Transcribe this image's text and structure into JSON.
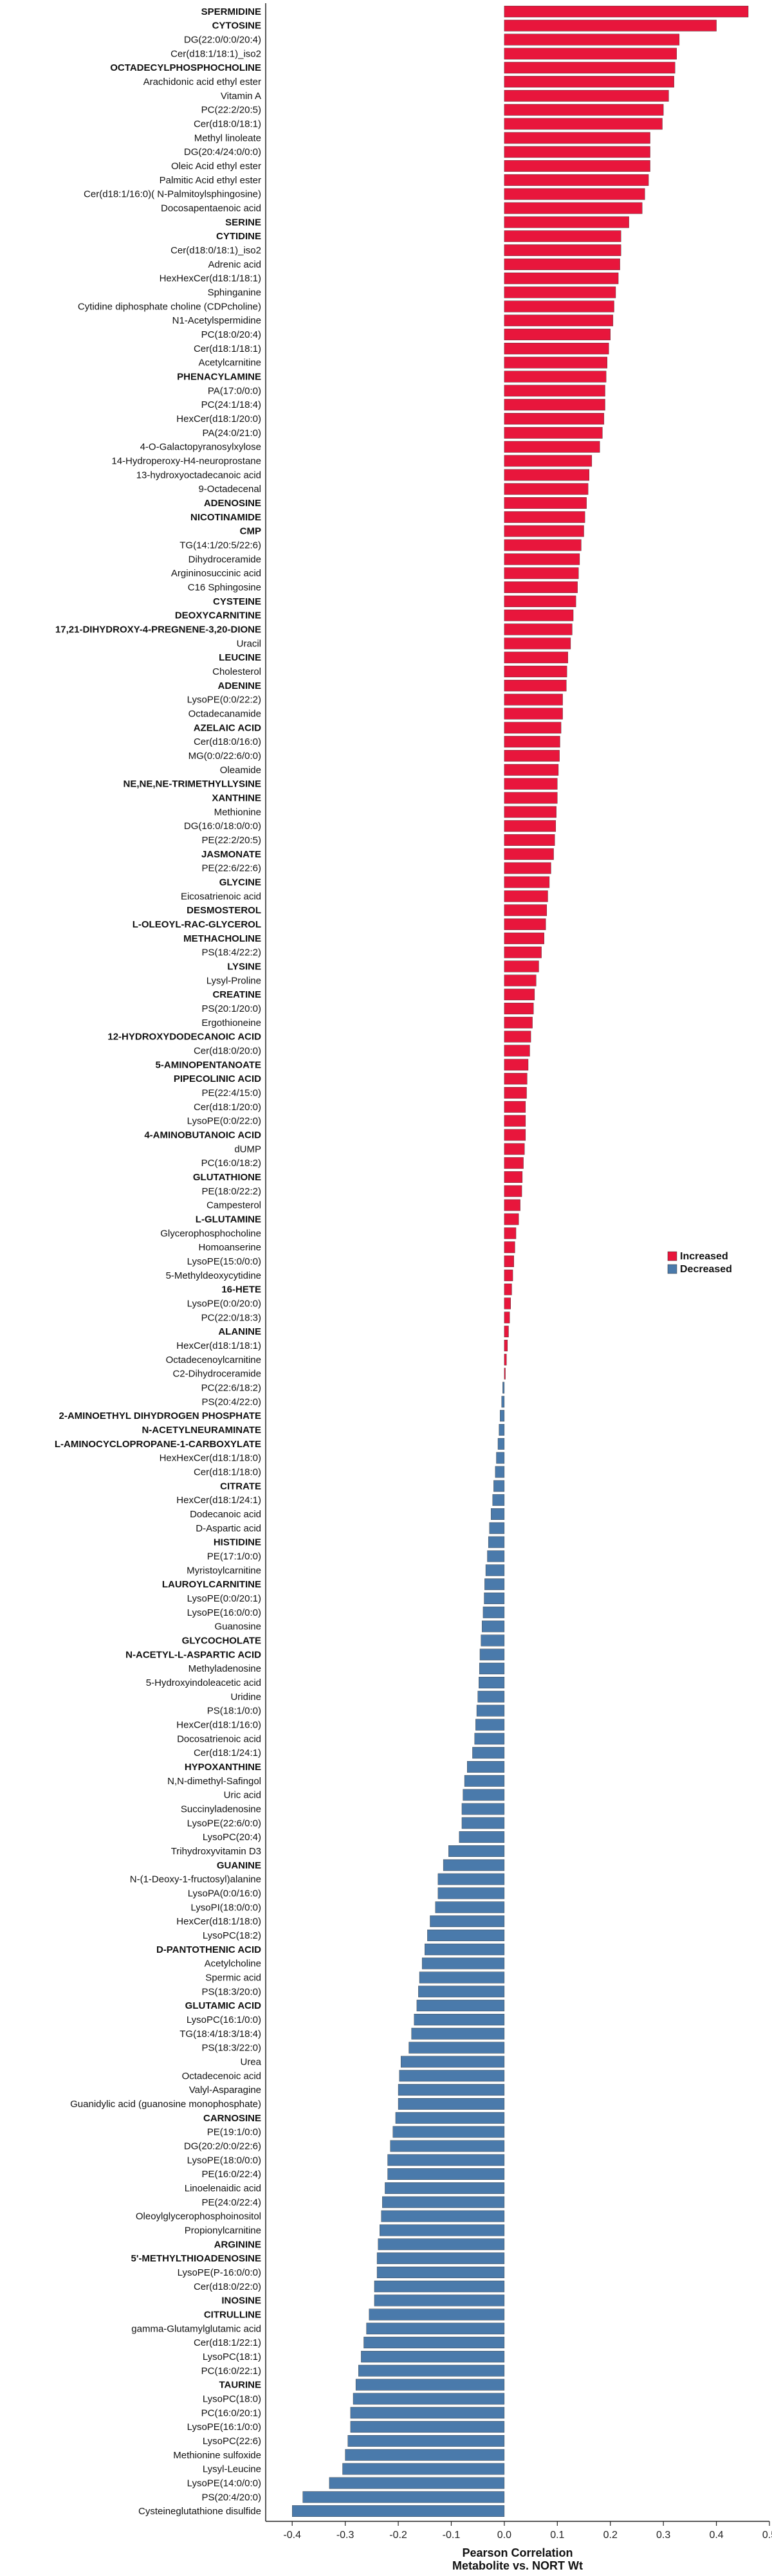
{
  "chart_data": {
    "type": "bar",
    "orientation": "horizontal",
    "xlabel": "Pearson Correlation\nMetabolite vs. NORT Wt",
    "ylabel": "",
    "xlim": [
      -0.45,
      0.5
    ],
    "xticks": [
      -0.4,
      -0.3,
      -0.2,
      -0.1,
      0.0,
      0.1,
      0.2,
      0.3,
      0.4,
      0.5
    ],
    "tick_labels": [
      "-0.4",
      "-0.3",
      "-0.2",
      "-0.1",
      "0.0",
      "0.1",
      "0.2",
      "0.3",
      "0.4",
      "0.5"
    ],
    "grid": false,
    "legend": {
      "placement": "right",
      "entries": [
        {
          "label": "Increased",
          "color": "#e8163c"
        },
        {
          "label": "Decreased",
          "color": "#4a7aab"
        }
      ]
    },
    "colors": {
      "positive": "#e8163c",
      "negative": "#4a7aab"
    },
    "bold_categories": [
      "SPERMIDINE",
      "CYTOSINE",
      "OCTADECYLPHOSPHOCHOLINE",
      "SERINE",
      "CYTIDINE",
      "PHENACYLAMINE",
      "ADENOSINE",
      "NICOTINAMIDE",
      "CMP",
      "CYSTEINE",
      "DEOXYCARNITINE",
      "17,21-DIHYDROXY-4-PREGNENE-3,20-DIONE",
      "LEUCINE",
      "ADENINE",
      "AZELAIC ACID",
      "NE,NE,NE-TRIMETHYLLYSINE",
      "XANTHINE",
      "JASMONATE",
      "GLYCINE",
      "DESMOSTEROL",
      "L-OLEOYL-RAC-GLYCEROL",
      "METHACHOLINE",
      "LYSINE",
      "CREATINE",
      "12-HYDROXYDODECANOIC ACID",
      "5-AMINOPENTANOATE",
      "PIPECOLINIC ACID",
      "4-AMINOBUTANOIC ACID",
      "GLUTATHIONE",
      "L-GLUTAMINE",
      "16-HETE",
      "ALANINE",
      "2-AMINOETHYL DIHYDROGEN PHOSPHATE",
      "N-ACETYLNEURAMINATE",
      "L-AMINOCYCLOPROPANE-1-CARBOXYLATE",
      "CITRATE",
      "HISTIDINE",
      "LAUROYLCARNITINE",
      "GLYCOCHOLATE",
      "N-ACETYL-L-ASPARTIC ACID",
      "HYPOXANTHINE",
      "GUANINE",
      "D-PANTOTHENIC ACID",
      "GLUTAMIC ACID",
      "CARNOSINE",
      "ARGININE",
      "5'-METHYLTHIOADENOSINE",
      "INOSINE",
      "CITRULLINE",
      "TAURINE"
    ],
    "categories": [
      "SPERMIDINE",
      "CYTOSINE",
      "DG(22:0/0:0/20:4)",
      "Cer(d18:1/18:1)_iso2",
      "OCTADECYLPHOSPHOCHOLINE",
      "Arachidonic acid ethyl ester",
      "Vitamin A",
      "PC(22:2/20:5)",
      "Cer(d18:0/18:1)",
      "Methyl linoleate",
      "DG(20:4/24:0/0:0)",
      "Oleic Acid ethyl ester",
      "Palmitic Acid ethyl ester",
      "Cer(d18:1/16:0)( N-Palmitoylsphingosine)",
      "Docosapentaenoic acid",
      "SERINE",
      "CYTIDINE",
      "Cer(d18:0/18:1)_iso2",
      "Adrenic acid",
      "HexHexCer(d18:1/18:1)",
      "Sphinganine",
      "Cytidine diphosphate choline (CDPcholine)",
      "N1-Acetylspermidine",
      "PC(18:0/20:4)",
      "Cer(d18:1/18:1)",
      "Acetylcarnitine",
      "PHENACYLAMINE",
      "PA(17:0/0:0)",
      "PC(24:1/18:4)",
      "HexCer(d18:1/20:0)",
      "PA(24:0/21:0)",
      "4-O-Galactopyranosylxylose",
      "14-Hydroperoxy-H4-neuroprostane",
      "13-hydroxyoctadecanoic acid",
      "9-Octadecenal",
      "ADENOSINE",
      "NICOTINAMIDE",
      "CMP",
      "TG(14:1/20:5/22:6)",
      "Dihydroceramide",
      "Argininosuccinic acid",
      "C16 Sphingosine",
      "CYSTEINE",
      "DEOXYCARNITINE",
      "17,21-DIHYDROXY-4-PREGNENE-3,20-DIONE",
      "Uracil",
      "LEUCINE",
      "Cholesterol",
      "ADENINE",
      "LysoPE(0:0/22:2)",
      "Octadecanamide",
      "AZELAIC ACID",
      "Cer(d18:0/16:0)",
      "MG(0:0/22:6/0:0)",
      "Oleamide",
      "NE,NE,NE-TRIMETHYLLYSINE",
      "XANTHINE",
      "Methionine",
      "DG(16:0/18:0/0:0)",
      "PE(22:2/20:5)",
      "JASMONATE",
      "PE(22:6/22:6)",
      "GLYCINE",
      "Eicosatrienoic acid",
      "DESMOSTEROL",
      "L-OLEOYL-RAC-GLYCEROL",
      "METHACHOLINE",
      "PS(18:4/22:2)",
      "LYSINE",
      "Lysyl-Proline",
      "CREATINE",
      "PS(20:1/20:0)",
      "Ergothioneine",
      "12-HYDROXYDODECANOIC ACID",
      "Cer(d18:0/20:0)",
      "5-AMINOPENTANOATE",
      "PIPECOLINIC ACID",
      "PE(22:4/15:0)",
      "Cer(d18:1/20:0)",
      "LysoPE(0:0/22:0)",
      "4-AMINOBUTANOIC ACID",
      "dUMP",
      "PC(16:0/18:2)",
      "GLUTATHIONE",
      "PE(18:0/22:2)",
      "Campesterol",
      "L-GLUTAMINE",
      "Glycerophosphocholine",
      "Homoanserine",
      "LysoPE(15:0/0:0)",
      "5-Methyldeoxycytidine",
      "16-HETE",
      "LysoPE(0:0/20:0)",
      "PC(22:0/18:3)",
      "ALANINE",
      "HexCer(d18:1/18:1)",
      "Octadecenoylcarnitine",
      "C2-Dihydroceramide",
      "PC(22:6/18:2)",
      "PS(20:4/22:0)",
      "2-AMINOETHYL DIHYDROGEN PHOSPHATE",
      "N-ACETYLNEURAMINATE",
      "L-AMINOCYCLOPROPANE-1-CARBOXYLATE",
      "HexHexCer(d18:1/18:0)",
      "Cer(d18:1/18:0)",
      "CITRATE",
      "HexCer(d18:1/24:1)",
      "Dodecanoic acid",
      "D-Aspartic acid",
      "HISTIDINE",
      "PE(17:1/0:0)",
      "Myristoylcarnitine",
      "LAUROYLCARNITINE",
      "LysoPE(0:0/20:1)",
      "LysoPE(16:0/0:0)",
      "Guanosine",
      "GLYCOCHOLATE",
      "N-ACETYL-L-ASPARTIC ACID",
      "Methyladenosine",
      "5-Hydroxyindoleacetic acid",
      "Uridine",
      "PS(18:1/0:0)",
      "HexCer(d18:1/16:0)",
      "Docosatrienoic acid",
      "Cer(d18:1/24:1)",
      "HYPOXANTHINE",
      "N,N-dimethyl-Safingol",
      "Uric acid",
      "Succinyladenosine",
      "LysoPE(22:6/0:0)",
      "LysoPC(20:4)",
      "Trihydroxyvitamin D3",
      "GUANINE",
      "N-(1-Deoxy-1-fructosyl)alanine",
      "LysoPA(0:0/16:0)",
      "LysoPI(18:0/0:0)",
      "HexCer(d18:1/18:0)",
      "LysoPC(18:2)",
      "D-PANTOTHENIC ACID",
      "Acetylcholine",
      "Spermic acid",
      "PS(18:3/20:0)",
      "GLUTAMIC ACID",
      "LysoPC(16:1/0:0)",
      "TG(18:4/18:3/18:4)",
      "PS(18:3/22:0)",
      "Urea",
      "Octadecenoic acid",
      "Valyl-Asparagine",
      "Guanidylic acid (guanosine monophosphate)",
      "CARNOSINE",
      "PE(19:1/0:0)",
      "DG(20:2/0:0/22:6)",
      "LysoPE(18:0/0:0)",
      "PE(16:0/22:4)",
      "Linoelenaidic acid",
      "PE(24:0/22:4)",
      "Oleoylglycerophosphoinositol",
      "Propionylcarnitine",
      "ARGININE",
      "5'-METHYLTHIOADENOSINE",
      "LysoPE(P-16:0/0:0)",
      "Cer(d18:0/22:0)",
      "INOSINE",
      "CITRULLINE",
      "gamma-Glutamylglutamic acid",
      "Cer(d18:1/22:1)",
      "LysoPC(18:1)",
      "PC(16:0/22:1)",
      "TAURINE",
      "LysoPC(18:0)",
      "PC(16:0/20:1)",
      "LysoPE(16:1/0:0)",
      "LysoPC(22:6)",
      "Methionine sulfoxide",
      "Lysyl-Leucine",
      "LysoPE(14:0/0:0)",
      "PS(20:4/20:0)",
      "Cysteineglutathione disulfide"
    ],
    "values": [
      0.46,
      0.4,
      0.33,
      0.325,
      0.322,
      0.32,
      0.31,
      0.3,
      0.298,
      0.275,
      0.275,
      0.275,
      0.272,
      0.265,
      0.26,
      0.235,
      0.22,
      0.22,
      0.218,
      0.215,
      0.21,
      0.207,
      0.205,
      0.2,
      0.197,
      0.194,
      0.192,
      0.19,
      0.19,
      0.188,
      0.185,
      0.18,
      0.165,
      0.16,
      0.158,
      0.155,
      0.152,
      0.15,
      0.145,
      0.142,
      0.14,
      0.138,
      0.135,
      0.13,
      0.128,
      0.125,
      0.12,
      0.118,
      0.117,
      0.11,
      0.11,
      0.107,
      0.105,
      0.104,
      0.102,
      0.1,
      0.1,
      0.098,
      0.097,
      0.095,
      0.093,
      0.088,
      0.085,
      0.082,
      0.08,
      0.078,
      0.075,
      0.07,
      0.065,
      0.06,
      0.057,
      0.055,
      0.053,
      0.05,
      0.048,
      0.045,
      0.043,
      0.042,
      0.04,
      0.04,
      0.04,
      0.038,
      0.036,
      0.034,
      0.033,
      0.03,
      0.027,
      0.022,
      0.02,
      0.018,
      0.016,
      0.014,
      0.012,
      0.01,
      0.008,
      0.006,
      0.004,
      0.002,
      -0.003,
      -0.005,
      -0.008,
      -0.01,
      -0.012,
      -0.015,
      -0.017,
      -0.02,
      -0.022,
      -0.025,
      -0.028,
      -0.03,
      -0.032,
      -0.035,
      -0.037,
      -0.038,
      -0.04,
      -0.042,
      -0.044,
      -0.046,
      -0.047,
      -0.048,
      -0.05,
      -0.052,
      -0.054,
      -0.056,
      -0.06,
      -0.07,
      -0.075,
      -0.078,
      -0.08,
      -0.08,
      -0.085,
      -0.105,
      -0.115,
      -0.125,
      -0.125,
      -0.13,
      -0.14,
      -0.145,
      -0.15,
      -0.155,
      -0.16,
      -0.162,
      -0.165,
      -0.17,
      -0.175,
      -0.18,
      -0.195,
      -0.198,
      -0.2,
      -0.2,
      -0.205,
      -0.21,
      -0.215,
      -0.22,
      -0.22,
      -0.225,
      -0.23,
      -0.232,
      -0.235,
      -0.238,
      -0.24,
      -0.24,
      -0.245,
      -0.245,
      -0.255,
      -0.26,
      -0.265,
      -0.27,
      -0.275,
      -0.28,
      -0.285,
      -0.29,
      -0.29,
      -0.295,
      -0.3,
      -0.305,
      -0.33,
      -0.38,
      -0.4
    ]
  }
}
